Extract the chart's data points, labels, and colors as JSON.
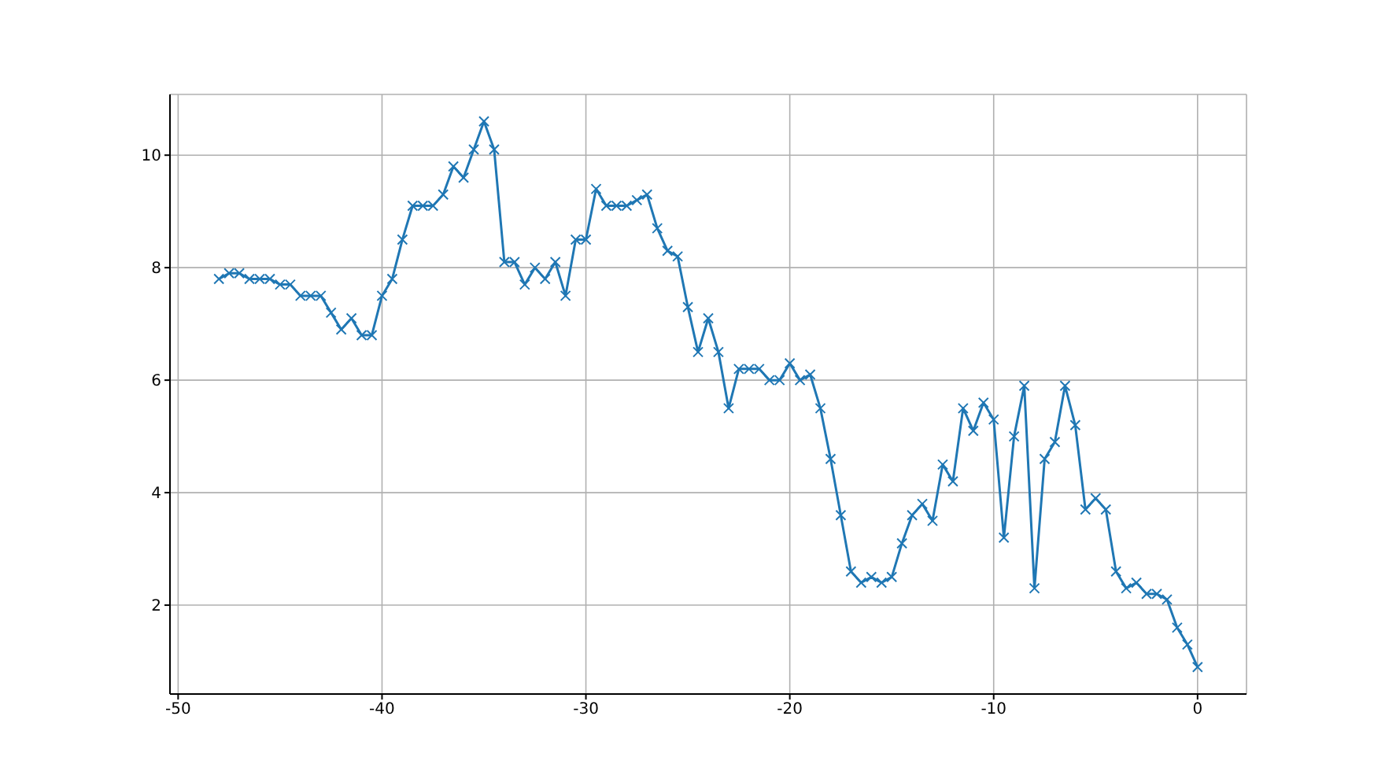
{
  "chart_data": {
    "type": "line",
    "x": [
      -48,
      -47.5,
      -47,
      -46.5,
      -46,
      -45.5,
      -45,
      -44.5,
      -44,
      -43.5,
      -43,
      -42.5,
      -42,
      -41.5,
      -41,
      -40.5,
      -40,
      -39.5,
      -39,
      -38.5,
      -38,
      -37.5,
      -37,
      -36.5,
      -36,
      -35.5,
      -35,
      -34.5,
      -34,
      -33.5,
      -33,
      -32.5,
      -32,
      -31.5,
      -31,
      -30.5,
      -30,
      -29.5,
      -29,
      -28.5,
      -28,
      -27.5,
      -27,
      -26.5,
      -26,
      -25.5,
      -25,
      -24.5,
      -24,
      -23.5,
      -23,
      -22.5,
      -22,
      -21.5,
      -21,
      -20.5,
      -20,
      -19.5,
      -19,
      -18.5,
      -18,
      -17.5,
      -17,
      -16.5,
      -16,
      -15.5,
      -15,
      -14.5,
      -14,
      -13.5,
      -13,
      -12.5,
      -12,
      -11.5,
      -11,
      -10.5,
      -10,
      -9.5,
      -9,
      -8.5,
      -8,
      -7.5,
      -7,
      -6.5,
      -6,
      -5.5,
      -5,
      -4.5,
      -4,
      -3.5,
      -3,
      -2.5,
      -2,
      -1.5,
      -1,
      -0.5,
      0
    ],
    "series": [
      {
        "color": "#1f77b4",
        "values": [
          7.8,
          7.9,
          7.9,
          7.8,
          7.8,
          7.8,
          7.7,
          7.7,
          7.5,
          7.5,
          7.5,
          7.2,
          6.9,
          7.1,
          6.8,
          6.8,
          7.5,
          7.8,
          8.5,
          9.1,
          9.1,
          9.1,
          9.3,
          9.8,
          9.6,
          10.1,
          10.6,
          10.1,
          8.1,
          8.1,
          7.7,
          8.0,
          7.8,
          8.1,
          7.5,
          8.5,
          8.5,
          9.4,
          9.1,
          9.1,
          9.1,
          9.2,
          9.3,
          8.7,
          8.3,
          8.2,
          7.3,
          6.5,
          7.1,
          6.5,
          5.5,
          6.2,
          6.2,
          6.2,
          6.0,
          6.0,
          6.3,
          6.0,
          6.1,
          5.5,
          4.6,
          3.6,
          2.6,
          2.4,
          2.5,
          2.4,
          2.5,
          3.1,
          3.6,
          3.8,
          3.5,
          4.5,
          4.2,
          5.5,
          5.1,
          5.6,
          5.3,
          3.2,
          5.0,
          5.9,
          2.3,
          4.6,
          4.9,
          5.9,
          5.2,
          3.7,
          3.9,
          3.7,
          2.6,
          2.3,
          2.4,
          2.2,
          2.2,
          2.1,
          1.6,
          1.3,
          0.9
        ]
      }
    ],
    "xlim": [
      -50.4,
      2.4
    ],
    "xticks": [
      -50,
      -40,
      -30,
      -20,
      -10,
      0
    ],
    "ylim": [
      0.42,
      11.08
    ],
    "yticks": [
      2,
      4,
      6,
      8,
      10
    ],
    "grid": true,
    "marker": "cross",
    "line_style": "solid",
    "legend": false
  }
}
